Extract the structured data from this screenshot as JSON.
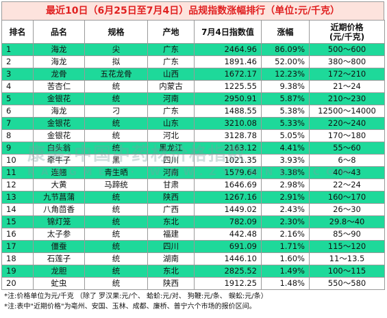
{
  "title": "最近10日（6月25日至7月4日）品规指数涨幅排行（单位:元/千克）",
  "headers": [
    "排名",
    "品名",
    "规格",
    "产地",
    "7月4日指数值",
    "涨幅",
    "近期价格\n(元/千克)"
  ],
  "rows": [
    [
      "1",
      "海龙",
      "尖",
      "广东",
      "2464.96",
      "86.09%",
      "500～600"
    ],
    [
      "2",
      "海龙",
      "拟",
      "广东",
      "1891.46",
      "52.00%",
      "380～800"
    ],
    [
      "3",
      "龙骨",
      "五花龙骨",
      "山西",
      "1672.17",
      "12.23%",
      "172～210"
    ],
    [
      "4",
      "苦杏仁",
      "统",
      "内蒙古",
      "1225.55",
      "9.38%",
      "21～24"
    ],
    [
      "5",
      "金银花",
      "统",
      "河南",
      "2950.91",
      "5.87%",
      "210～230"
    ],
    [
      "6",
      "海龙",
      "刁",
      "广东",
      "1488.55",
      "5.38%",
      "12500～14000"
    ],
    [
      "7",
      "金银花",
      "统",
      "山东",
      "3210.08",
      "5.33%",
      "220～240"
    ],
    [
      "8",
      "金银花",
      "统",
      "河北",
      "3128.78",
      "5.05%",
      "170～180"
    ],
    [
      "9",
      "白头翁",
      "统",
      "黑龙江",
      "2163.12",
      "4.41%",
      "55～60"
    ],
    [
      "10",
      "牵牛子",
      "黑",
      "四川",
      "1021.35",
      "3.93%",
      "6～8"
    ],
    [
      "11",
      "连翘",
      "青生晒",
      "河南",
      "1579.64",
      "3.38%",
      "40～43"
    ],
    [
      "12",
      "大黄",
      "马蹄统",
      "甘肃",
      "1646.69",
      "2.98%",
      "22～24"
    ],
    [
      "13",
      "九节菖蒲",
      "统",
      "陕西",
      "1267.16",
      "2.91%",
      "160～170"
    ],
    [
      "14",
      "八角茴香",
      "统",
      "广西",
      "1449.02",
      "2.43%",
      "26～30"
    ],
    [
      "15",
      "锦灯笼",
      "统",
      "东北",
      "782.09",
      "2.30%",
      "29.8～40"
    ],
    [
      "16",
      "太子参",
      "统",
      "福建",
      "442.48",
      "2.16%",
      "85～90"
    ],
    [
      "17",
      "僵蚕",
      "统",
      "四川",
      "691.09",
      "1.71%",
      "115～120"
    ],
    [
      "18",
      "石莲子",
      "统",
      "湖南",
      "1446.10",
      "1.60%",
      "11～13.5"
    ],
    [
      "19",
      "龙胆",
      "统",
      "东北",
      "2825.52",
      "1.49%",
      "100～115"
    ],
    [
      "20",
      "虻虫",
      "统",
      "陕西",
      "1912.25",
      "1.48%",
      "550～580"
    ]
  ],
  "notes": [
    "*注:价格单位为元/千克 （除了  罗汉果:元/个、  蛤蚧:元/对、  狗鞭:元/条、  蜈蚣:元/条）",
    "*注:表中\"近期价格\"为亳州、安国、玉林、成都、廉桥、普宁六个市场的报价区间。"
  ],
  "watermark": {
    "line1": "康美·中国中药材价格指数",
    "line2": "KANGMEI · WWW.ZYCWNET.COM"
  },
  "colors": {
    "row_highlight": "#1ed99a",
    "title_bg": "#fde3dd",
    "title_text": "#e02020"
  }
}
